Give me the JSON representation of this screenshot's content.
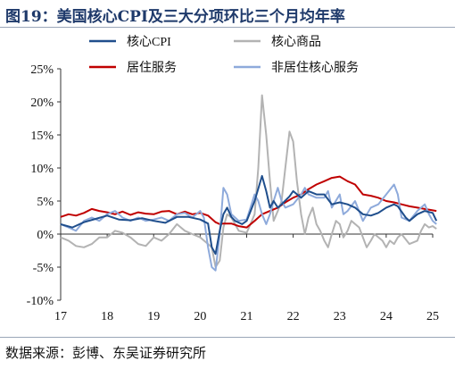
{
  "header": {
    "title": "图19：美国核心CPI及三大分项环比三个月均年率"
  },
  "footer": {
    "source": "数据来源：彭博、东吴证券研究所"
  },
  "chart_data": {
    "type": "line",
    "title": "图19：美国核心CPI及三大分项环比三个月均年率",
    "xlabel": "",
    "ylabel": "",
    "ylim": [
      -10,
      25
    ],
    "yticks": [
      -10,
      -5,
      0,
      5,
      10,
      15,
      20,
      25
    ],
    "ytick_format": "percent",
    "xlim": [
      2017,
      2025
    ],
    "xticks": [
      2017,
      2018,
      2019,
      2020,
      2021,
      2022,
      2023,
      2024,
      2025
    ],
    "xtick_labels": [
      "17",
      "18",
      "19",
      "20",
      "21",
      "22",
      "23",
      "24",
      "25"
    ],
    "grid": false,
    "legend_position": "top",
    "series": [
      {
        "name": "核心CPI",
        "color": "#1f4e8c",
        "points": [
          [
            2017.0,
            1.5
          ],
          [
            2017.25,
            1.0
          ],
          [
            2017.5,
            1.8
          ],
          [
            2017.75,
            2.3
          ],
          [
            2018.0,
            2.8
          ],
          [
            2018.25,
            2.2
          ],
          [
            2018.5,
            2.1
          ],
          [
            2018.75,
            2.4
          ],
          [
            2019.0,
            2.0
          ],
          [
            2019.25,
            1.7
          ],
          [
            2019.5,
            2.6
          ],
          [
            2019.75,
            2.6
          ],
          [
            2020.0,
            2.2
          ],
          [
            2020.17,
            1.6
          ],
          [
            2020.25,
            -2.0
          ],
          [
            2020.33,
            -3.0
          ],
          [
            2020.42,
            0.5
          ],
          [
            2020.5,
            3.0
          ],
          [
            2020.58,
            4.0
          ],
          [
            2020.67,
            2.6
          ],
          [
            2020.75,
            2.0
          ],
          [
            2020.9,
            1.5
          ],
          [
            2021.0,
            2.0
          ],
          [
            2021.17,
            5.0
          ],
          [
            2021.33,
            8.8
          ],
          [
            2021.42,
            6.5
          ],
          [
            2021.5,
            4.0
          ],
          [
            2021.58,
            5.0
          ],
          [
            2021.67,
            4.0
          ],
          [
            2021.75,
            4.5
          ],
          [
            2021.92,
            5.7
          ],
          [
            2022.0,
            6.5
          ],
          [
            2022.17,
            5.5
          ],
          [
            2022.33,
            6.5
          ],
          [
            2022.5,
            6.0
          ],
          [
            2022.67,
            6.0
          ],
          [
            2022.83,
            4.5
          ],
          [
            2023.0,
            4.8
          ],
          [
            2023.17,
            4.5
          ],
          [
            2023.33,
            4.0
          ],
          [
            2023.5,
            3.0
          ],
          [
            2023.67,
            2.8
          ],
          [
            2023.83,
            3.2
          ],
          [
            2024.0,
            4.0
          ],
          [
            2024.17,
            4.5
          ],
          [
            2024.25,
            4.2
          ],
          [
            2024.42,
            2.5
          ],
          [
            2024.5,
            2.0
          ],
          [
            2024.67,
            3.0
          ],
          [
            2024.83,
            3.5
          ],
          [
            2025.0,
            3.2
          ],
          [
            2025.08,
            2.0
          ]
        ]
      },
      {
        "name": "核心商品",
        "color": "#b3b3b3",
        "points": [
          [
            2017.0,
            -0.5
          ],
          [
            2017.17,
            -1.0
          ],
          [
            2017.33,
            -1.8
          ],
          [
            2017.5,
            -2.0
          ],
          [
            2017.67,
            -1.5
          ],
          [
            2017.83,
            -0.5
          ],
          [
            2018.0,
            -0.5
          ],
          [
            2018.17,
            0.5
          ],
          [
            2018.33,
            0.2
          ],
          [
            2018.5,
            -0.5
          ],
          [
            2018.67,
            -1.5
          ],
          [
            2018.83,
            -1.8
          ],
          [
            2019.0,
            -0.5
          ],
          [
            2019.17,
            -1.0
          ],
          [
            2019.33,
            0.0
          ],
          [
            2019.5,
            1.5
          ],
          [
            2019.67,
            0.5
          ],
          [
            2019.83,
            0.0
          ],
          [
            2020.0,
            -0.5
          ],
          [
            2020.17,
            -1.5
          ],
          [
            2020.25,
            -2.0
          ],
          [
            2020.33,
            -5.0
          ],
          [
            2020.42,
            -4.0
          ],
          [
            2020.5,
            1.0
          ],
          [
            2020.58,
            3.0
          ],
          [
            2020.67,
            2.5
          ],
          [
            2020.75,
            1.5
          ],
          [
            2020.83,
            0.5
          ],
          [
            2021.0,
            0.2
          ],
          [
            2021.08,
            1.5
          ],
          [
            2021.17,
            3.0
          ],
          [
            2021.25,
            10.0
          ],
          [
            2021.33,
            21.0
          ],
          [
            2021.42,
            15.0
          ],
          [
            2021.5,
            8.0
          ],
          [
            2021.58,
            2.0
          ],
          [
            2021.67,
            3.5
          ],
          [
            2021.75,
            5.0
          ],
          [
            2021.83,
            10.0
          ],
          [
            2021.92,
            15.5
          ],
          [
            2022.0,
            14.0
          ],
          [
            2022.08,
            8.0
          ],
          [
            2022.17,
            3.0
          ],
          [
            2022.25,
            0.0
          ],
          [
            2022.33,
            2.5
          ],
          [
            2022.42,
            4.0
          ],
          [
            2022.5,
            1.5
          ],
          [
            2022.58,
            0.5
          ],
          [
            2022.67,
            -1.0
          ],
          [
            2022.75,
            -2.0
          ],
          [
            2022.83,
            0.0
          ],
          [
            2022.92,
            2.0
          ],
          [
            2023.0,
            1.5
          ],
          [
            2023.08,
            -0.5
          ],
          [
            2023.17,
            0.5
          ],
          [
            2023.25,
            2.0
          ],
          [
            2023.42,
            1.0
          ],
          [
            2023.5,
            -0.5
          ],
          [
            2023.58,
            -2.0
          ],
          [
            2023.67,
            -1.0
          ],
          [
            2023.75,
            0.0
          ],
          [
            2023.92,
            -1.0
          ],
          [
            2024.0,
            -2.0
          ],
          [
            2024.08,
            -1.0
          ],
          [
            2024.17,
            -1.5
          ],
          [
            2024.25,
            -0.5
          ],
          [
            2024.33,
            0.0
          ],
          [
            2024.5,
            -1.5
          ],
          [
            2024.67,
            -1.0
          ],
          [
            2024.75,
            0.5
          ],
          [
            2024.83,
            1.5
          ],
          [
            2024.92,
            1.0
          ],
          [
            2025.0,
            1.2
          ],
          [
            2025.08,
            0.8
          ]
        ]
      },
      {
        "name": "居住服务",
        "color": "#c00000",
        "points": [
          [
            2017.0,
            2.6
          ],
          [
            2017.17,
            3.0
          ],
          [
            2017.33,
            2.8
          ],
          [
            2017.5,
            3.2
          ],
          [
            2017.67,
            3.8
          ],
          [
            2017.83,
            3.5
          ],
          [
            2018.0,
            3.3
          ],
          [
            2018.17,
            3.0
          ],
          [
            2018.33,
            3.4
          ],
          [
            2018.5,
            2.9
          ],
          [
            2018.67,
            3.3
          ],
          [
            2018.83,
            3.1
          ],
          [
            2019.0,
            3.0
          ],
          [
            2019.17,
            3.4
          ],
          [
            2019.33,
            3.5
          ],
          [
            2019.5,
            3.0
          ],
          [
            2019.67,
            3.4
          ],
          [
            2019.83,
            3.0
          ],
          [
            2020.0,
            3.2
          ],
          [
            2020.17,
            2.8
          ],
          [
            2020.33,
            1.8
          ],
          [
            2020.42,
            1.5
          ],
          [
            2020.5,
            1.6
          ],
          [
            2020.67,
            1.6
          ],
          [
            2020.83,
            1.2
          ],
          [
            2021.0,
            1.0
          ],
          [
            2021.17,
            2.0
          ],
          [
            2021.33,
            3.0
          ],
          [
            2021.5,
            3.5
          ],
          [
            2021.67,
            4.0
          ],
          [
            2021.83,
            4.8
          ],
          [
            2022.0,
            5.5
          ],
          [
            2022.17,
            6.0
          ],
          [
            2022.33,
            6.8
          ],
          [
            2022.5,
            7.5
          ],
          [
            2022.67,
            8.0
          ],
          [
            2022.83,
            8.5
          ],
          [
            2023.0,
            8.7
          ],
          [
            2023.17,
            8.0
          ],
          [
            2023.33,
            7.5
          ],
          [
            2023.5,
            6.0
          ],
          [
            2023.67,
            5.8
          ],
          [
            2023.83,
            5.5
          ],
          [
            2024.0,
            5.0
          ],
          [
            2024.17,
            4.8
          ],
          [
            2024.33,
            4.5
          ],
          [
            2024.5,
            4.2
          ],
          [
            2024.67,
            4.0
          ],
          [
            2024.83,
            3.8
          ],
          [
            2025.0,
            3.6
          ],
          [
            2025.08,
            3.5
          ]
        ]
      },
      {
        "name": "非居住核心服务",
        "color": "#8eaadb",
        "points": [
          [
            2017.0,
            1.5
          ],
          [
            2017.17,
            1.0
          ],
          [
            2017.33,
            0.5
          ],
          [
            2017.5,
            2.0
          ],
          [
            2017.67,
            2.5
          ],
          [
            2017.83,
            2.0
          ],
          [
            2018.0,
            3.0
          ],
          [
            2018.17,
            3.5
          ],
          [
            2018.33,
            2.5
          ],
          [
            2018.5,
            2.0
          ],
          [
            2018.67,
            2.5
          ],
          [
            2018.83,
            2.0
          ],
          [
            2019.0,
            2.2
          ],
          [
            2019.17,
            2.5
          ],
          [
            2019.33,
            2.0
          ],
          [
            2019.5,
            3.0
          ],
          [
            2019.67,
            3.2
          ],
          [
            2019.83,
            2.5
          ],
          [
            2020.0,
            3.5
          ],
          [
            2020.08,
            2.5
          ],
          [
            2020.17,
            -2.0
          ],
          [
            2020.25,
            -5.0
          ],
          [
            2020.33,
            -5.5
          ],
          [
            2020.42,
            0.0
          ],
          [
            2020.5,
            7.0
          ],
          [
            2020.58,
            6.0
          ],
          [
            2020.67,
            3.0
          ],
          [
            2020.75,
            2.5
          ],
          [
            2020.83,
            2.0
          ],
          [
            2021.0,
            2.2
          ],
          [
            2021.08,
            4.0
          ],
          [
            2021.17,
            6.0
          ],
          [
            2021.25,
            5.0
          ],
          [
            2021.33,
            3.0
          ],
          [
            2021.42,
            1.5
          ],
          [
            2021.5,
            3.0
          ],
          [
            2021.58,
            5.0
          ],
          [
            2021.67,
            7.0
          ],
          [
            2021.75,
            5.0
          ],
          [
            2021.83,
            4.0
          ],
          [
            2022.0,
            4.5
          ],
          [
            2022.17,
            6.0
          ],
          [
            2022.25,
            7.0
          ],
          [
            2022.33,
            6.0
          ],
          [
            2022.5,
            5.5
          ],
          [
            2022.67,
            5.5
          ],
          [
            2022.75,
            6.5
          ],
          [
            2022.83,
            4.0
          ],
          [
            2023.0,
            6.0
          ],
          [
            2023.08,
            3.0
          ],
          [
            2023.17,
            3.5
          ],
          [
            2023.33,
            5.0
          ],
          [
            2023.5,
            2.0
          ],
          [
            2023.67,
            4.0
          ],
          [
            2023.83,
            4.5
          ],
          [
            2024.0,
            6.0
          ],
          [
            2024.17,
            7.5
          ],
          [
            2024.25,
            6.0
          ],
          [
            2024.33,
            2.5
          ],
          [
            2024.5,
            2.0
          ],
          [
            2024.67,
            3.5
          ],
          [
            2024.75,
            4.0
          ],
          [
            2024.83,
            4.5
          ],
          [
            2024.92,
            3.0
          ],
          [
            2025.0,
            2.0
          ],
          [
            2025.08,
            1.5
          ]
        ]
      }
    ]
  }
}
